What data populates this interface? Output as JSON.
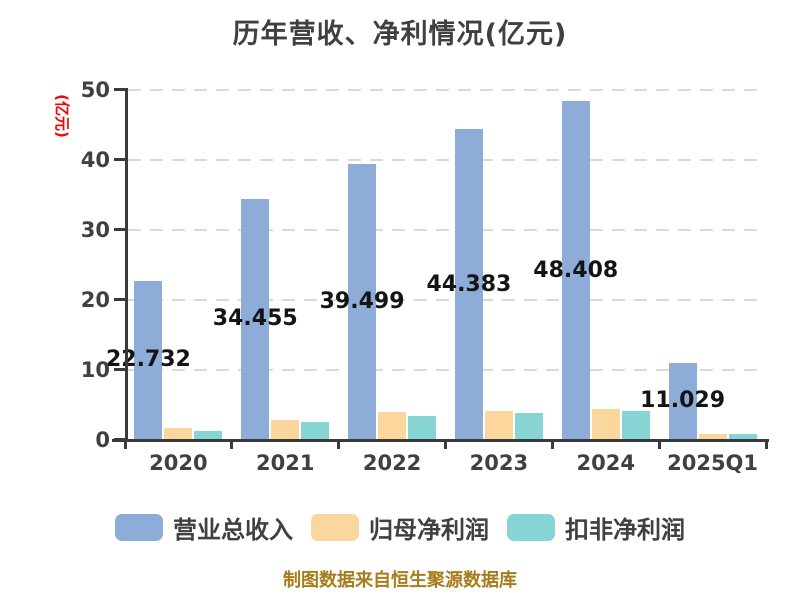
{
  "title": "历年营收、净利情况(亿元)",
  "y_axis_label": "(亿元)",
  "footer": "制图数据来自恒生聚源数据库",
  "colors": {
    "revenue_bar": "#8eacd8",
    "net_profit_bar": "#fbd79e",
    "non_gaap_bar": "#87d4d4",
    "title_text": "#404040",
    "axis_line": "#3a3a3a",
    "gridline": "#d9d9d9",
    "y_axis_label_text": "#ff0000",
    "footer_text": "#a87c1a",
    "data_label_text": "#141414"
  },
  "chart_data": {
    "type": "bar",
    "title": "历年营收、净利情况(亿元)",
    "xlabel": "",
    "ylabel": "(亿元)",
    "ylim": [
      0,
      50
    ],
    "yticks": [
      0,
      10,
      20,
      30,
      40,
      50
    ],
    "grid": "horizontal-dashed",
    "legend_position": "bottom",
    "categories": [
      "2020",
      "2021",
      "2022",
      "2023",
      "2024",
      "2025Q1"
    ],
    "series": [
      {
        "key": "revenue",
        "name": "营业总收入",
        "color": "#8eacd8",
        "values": [
          22.732,
          34.455,
          39.499,
          44.383,
          48.408,
          11.029
        ],
        "data_labels": [
          "22.732",
          "34.455",
          "39.499",
          "44.383",
          "48.408",
          "11.029"
        ]
      },
      {
        "key": "net-profit",
        "name": "归母净利润",
        "color": "#fbd79e",
        "values": [
          1.7,
          2.9,
          4.0,
          4.1,
          4.4,
          0.9
        ],
        "data_labels": null
      },
      {
        "key": "non-gaap",
        "name": "扣非净利润",
        "color": "#87d4d4",
        "values": [
          1.3,
          2.6,
          3.5,
          3.9,
          4.2,
          0.8
        ],
        "data_labels": null
      }
    ]
  }
}
